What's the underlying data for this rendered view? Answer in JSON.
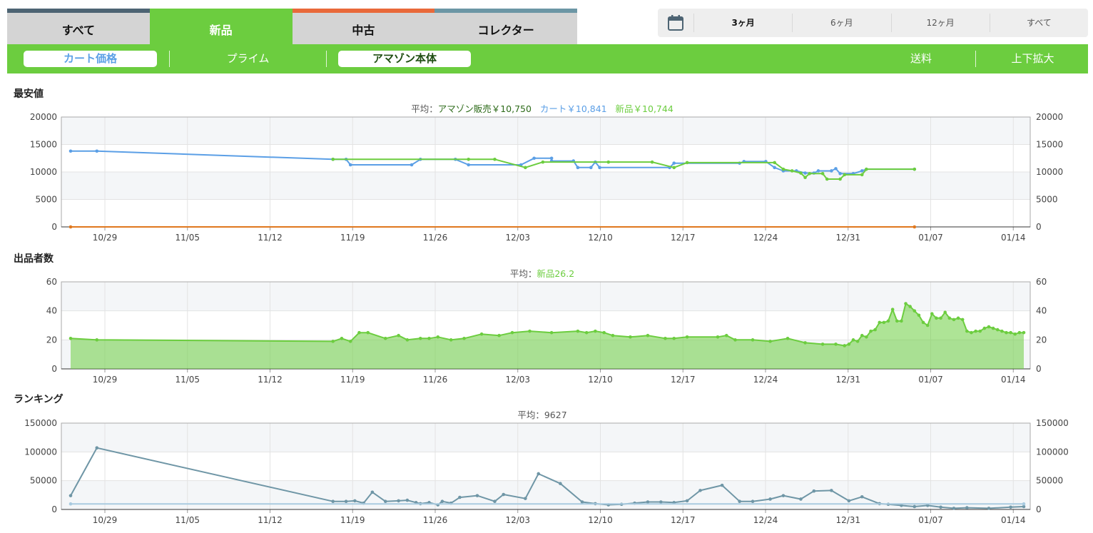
{
  "tabs": [
    {
      "label": "すべて",
      "color": "#4d6473",
      "active": false
    },
    {
      "label": "新品",
      "color": "#6ccd3f",
      "active": true
    },
    {
      "label": "中古",
      "color": "#e9693a",
      "active": false
    },
    {
      "label": "コレクター",
      "color": "#6c96a5",
      "active": false
    }
  ],
  "periods": [
    {
      "label": "3ヶ月",
      "active": true
    },
    {
      "label": "6ヶ月",
      "active": false
    },
    {
      "label": "12ヶ月",
      "active": false
    },
    {
      "label": "すべて",
      "active": false
    }
  ],
  "toolbar": {
    "cart_price": "カート価格",
    "prime": "プライム",
    "amazon": "アマゾン本体",
    "shipping": "送料",
    "zoom": "上下拡大"
  },
  "colors": {
    "green": "#6ccd3f",
    "blue": "#5b9fe6",
    "darkgreen": "#2e6b1a",
    "rank": "#6f96a6",
    "rankavg": "#a9cbe0",
    "orange": "#e0781e"
  },
  "chart_data": [
    {
      "type": "line",
      "title": "最安値",
      "legend": {
        "prefix": "平均：",
        "items": [
          {
            "label": "アマゾン販売￥10,750",
            "color": "#2e6b1a"
          },
          {
            "label": "カート￥10,841",
            "color": "#5b9fe6"
          },
          {
            "label": "新品￥10,744",
            "color": "#6ccd3f"
          }
        ]
      },
      "x_ticks": [
        "10/29",
        "11/05",
        "11/12",
        "11/19",
        "11/26",
        "12/03",
        "12/10",
        "12/17",
        "12/24",
        "12/31",
        "01/07",
        "01/14"
      ],
      "ylim": [
        0,
        20000
      ],
      "y_ticks": [
        "0",
        "5000",
        "10000",
        "15000",
        "20000"
      ],
      "series": [
        {
          "name": "カート",
          "color": "#5b9fe6",
          "points": [
            [
              0,
              13800
            ],
            [
              6,
              13800
            ],
            [
              60,
              12300
            ],
            [
              63,
              12300
            ],
            [
              64,
              11300
            ],
            [
              78,
              11300
            ],
            [
              80,
              12300
            ],
            [
              88,
              12300
            ],
            [
              91,
              11300
            ],
            [
              103,
              11300
            ],
            [
              106,
              12500
            ],
            [
              110,
              12500
            ],
            [
              110,
              12000
            ],
            [
              115,
              12000
            ],
            [
              116,
              10800
            ],
            [
              119,
              10800
            ],
            [
              120,
              11800
            ],
            [
              121,
              10800
            ],
            [
              137,
              10800
            ],
            [
              138,
              11600
            ],
            [
              153,
              11600
            ],
            [
              154,
              11900
            ],
            [
              159,
              11900
            ],
            [
              161,
              10800
            ],
            [
              163,
              10200
            ],
            [
              166,
              10200
            ],
            [
              168,
              9800
            ],
            [
              170,
              9800
            ],
            [
              171,
              10200
            ],
            [
              174,
              10200
            ],
            [
              175,
              10600
            ],
            [
              176,
              9700
            ],
            [
              179,
              9700
            ],
            [
              181,
              10200
            ],
            [
              182,
              10500
            ],
            [
              193,
              10500
            ]
          ]
        },
        {
          "name": "新品",
          "color": "#6ccd3f",
          "points": [
            [
              60,
              12300
            ],
            [
              91,
              12300
            ],
            [
              97,
              12300
            ],
            [
              104,
              10800
            ],
            [
              108,
              11800
            ],
            [
              123,
              11800
            ],
            [
              133,
              11800
            ],
            [
              138,
              10800
            ],
            [
              141,
              11700
            ],
            [
              161,
              11700
            ],
            [
              163,
              10500
            ],
            [
              165,
              10200
            ],
            [
              167,
              9800
            ],
            [
              168,
              9000
            ],
            [
              169,
              9700
            ],
            [
              172,
              9700
            ],
            [
              173,
              8700
            ],
            [
              176,
              8700
            ],
            [
              177,
              9500
            ],
            [
              181,
              9500
            ],
            [
              182,
              10500
            ],
            [
              193,
              10500
            ]
          ]
        },
        {
          "name": "アマゾン販売",
          "color": "#e0781e",
          "points": [
            [
              0,
              0
            ],
            [
              193,
              0
            ]
          ]
        }
      ]
    },
    {
      "type": "area",
      "title": "出品者数",
      "legend": {
        "prefix": "平均：",
        "items": [
          {
            "label": "新品26.2",
            "color": "#6ccd3f"
          }
        ]
      },
      "x_ticks": [
        "10/29",
        "11/05",
        "11/12",
        "11/19",
        "11/26",
        "12/03",
        "12/10",
        "12/17",
        "12/24",
        "12/31",
        "01/07",
        "01/14"
      ],
      "ylim": [
        0,
        60
      ],
      "y_ticks": [
        "0",
        "20",
        "40",
        "60"
      ],
      "series": [
        {
          "name": "新品",
          "color": "#6ccd3f",
          "points": [
            [
              0,
              21
            ],
            [
              6,
              20
            ],
            [
              60,
              19
            ],
            [
              62,
              21
            ],
            [
              64,
              19
            ],
            [
              66,
              25
            ],
            [
              68,
              25
            ],
            [
              72,
              21
            ],
            [
              75,
              23
            ],
            [
              77,
              20
            ],
            [
              80,
              21
            ],
            [
              82,
              21
            ],
            [
              84,
              22
            ],
            [
              87,
              20
            ],
            [
              90,
              21
            ],
            [
              94,
              24
            ],
            [
              98,
              23
            ],
            [
              101,
              25
            ],
            [
              105,
              26
            ],
            [
              110,
              25
            ],
            [
              116,
              26
            ],
            [
              118,
              25
            ],
            [
              120,
              26
            ],
            [
              122,
              25
            ],
            [
              124,
              23
            ],
            [
              128,
              22
            ],
            [
              132,
              23
            ],
            [
              136,
              21
            ],
            [
              138,
              21
            ],
            [
              141,
              22
            ],
            [
              148,
              22
            ],
            [
              150,
              23
            ],
            [
              152,
              20
            ],
            [
              156,
              20
            ],
            [
              160,
              19
            ],
            [
              164,
              21
            ],
            [
              168,
              18
            ],
            [
              172,
              17
            ],
            [
              175,
              17
            ],
            [
              177,
              16
            ],
            [
              178,
              17
            ],
            [
              179,
              20
            ],
            [
              180,
              19
            ],
            [
              181,
              23
            ],
            [
              182,
              22
            ],
            [
              183,
              26
            ],
            [
              184,
              27
            ],
            [
              185,
              32
            ],
            [
              186,
              32
            ],
            [
              187,
              33
            ],
            [
              188,
              41
            ],
            [
              189,
              33
            ],
            [
              190,
              33
            ],
            [
              191,
              45
            ],
            [
              192,
              43
            ],
            [
              193,
              40
            ],
            [
              194,
              37
            ],
            [
              195,
              32
            ],
            [
              196,
              30
            ],
            [
              197,
              38
            ],
            [
              198,
              35
            ],
            [
              199,
              35
            ],
            [
              200,
              39
            ],
            [
              201,
              35
            ],
            [
              202,
              34
            ],
            [
              203,
              35
            ],
            [
              204,
              34
            ],
            [
              205,
              26
            ],
            [
              206,
              25
            ],
            [
              207,
              26
            ],
            [
              208,
              26
            ],
            [
              209,
              28
            ],
            [
              210,
              29
            ],
            [
              211,
              28
            ],
            [
              212,
              27
            ],
            [
              213,
              26
            ],
            [
              214,
              25
            ],
            [
              215,
              25
            ],
            [
              216,
              24
            ],
            [
              217,
              25
            ],
            [
              218,
              25
            ]
          ]
        }
      ]
    },
    {
      "type": "line",
      "title": "ランキング",
      "legend": {
        "prefix": "平均：",
        "items": [
          {
            "label": "9627",
            "color": "#555555"
          }
        ]
      },
      "x_ticks": [
        "10/29",
        "11/05",
        "11/12",
        "11/19",
        "11/26",
        "12/03",
        "12/10",
        "12/17",
        "12/24",
        "12/31",
        "01/07",
        "01/14"
      ],
      "ylim": [
        0,
        150000
      ],
      "y_ticks": [
        "0",
        "50000",
        "100000",
        "150000"
      ],
      "series": [
        {
          "name": "ランキング",
          "color": "#6f96a6",
          "points": [
            [
              0,
              24000
            ],
            [
              6,
              107000
            ],
            [
              60,
              14000
            ],
            [
              63,
              14000
            ],
            [
              65,
              15000
            ],
            [
              67,
              11000
            ],
            [
              69,
              30000
            ],
            [
              72,
              14000
            ],
            [
              75,
              15000
            ],
            [
              77,
              16000
            ],
            [
              79,
              12000
            ],
            [
              80,
              10000
            ],
            [
              82,
              12000
            ],
            [
              84,
              8000
            ],
            [
              85,
              14000
            ],
            [
              87,
              11000
            ],
            [
              89,
              21000
            ],
            [
              93,
              24000
            ],
            [
              97,
              14000
            ],
            [
              99,
              26000
            ],
            [
              104,
              19000
            ],
            [
              107,
              62000
            ],
            [
              112,
              45000
            ],
            [
              117,
              13000
            ],
            [
              120,
              10000
            ],
            [
              123,
              8000
            ],
            [
              126,
              9000
            ],
            [
              129,
              11000
            ],
            [
              132,
              13000
            ],
            [
              135,
              13000
            ],
            [
              138,
              12000
            ],
            [
              141,
              15000
            ],
            [
              144,
              33000
            ],
            [
              149,
              42000
            ],
            [
              153,
              14000
            ],
            [
              156,
              14000
            ],
            [
              160,
              18000
            ],
            [
              163,
              24000
            ],
            [
              167,
              18000
            ],
            [
              170,
              32000
            ],
            [
              174,
              33000
            ],
            [
              178,
              15000
            ],
            [
              181,
              22000
            ],
            [
              185,
              10000
            ],
            [
              187,
              9000
            ],
            [
              190,
              7000
            ],
            [
              193,
              5000
            ],
            [
              196,
              7000
            ],
            [
              199,
              4000
            ],
            [
              202,
              2000
            ],
            [
              205,
              3000
            ],
            [
              210,
              2000
            ],
            [
              215,
              4000
            ],
            [
              218,
              5000
            ]
          ]
        },
        {
          "name": "平均",
          "color": "#a9cbe0",
          "points": [
            [
              0,
              9627
            ],
            [
              218,
              9627
            ]
          ]
        }
      ]
    }
  ]
}
